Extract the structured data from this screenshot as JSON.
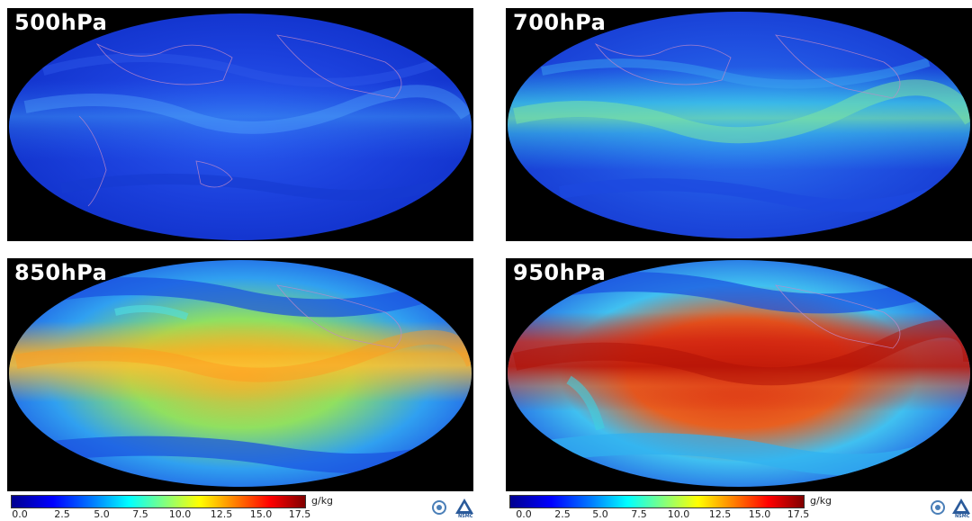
{
  "panels": [
    {
      "label": "500hPa",
      "theme": "dry"
    },
    {
      "label": "700hPa",
      "theme": "medium"
    },
    {
      "label": "850hPa",
      "theme": "moist"
    },
    {
      "label": "950hPa",
      "theme": "wet"
    }
  ],
  "colorbar": {
    "unit": "g/kg",
    "ticks": [
      "0.0",
      "2.5",
      "5.0",
      "7.5",
      "10.0",
      "12.5",
      "15.0",
      "17.5"
    ],
    "colors": [
      "#00008f",
      "#0000ff",
      "#0080ff",
      "#00ffff",
      "#80ff80",
      "#ffff00",
      "#ff8000",
      "#ff0000",
      "#800000"
    ]
  },
  "logos": {
    "right_logo_text": "NSMC"
  },
  "colors": {
    "dry": "#1e3fe0",
    "medium": "#3aa0f0",
    "moist": "#ffc030",
    "wet": "#d02010",
    "background": "#000000"
  }
}
